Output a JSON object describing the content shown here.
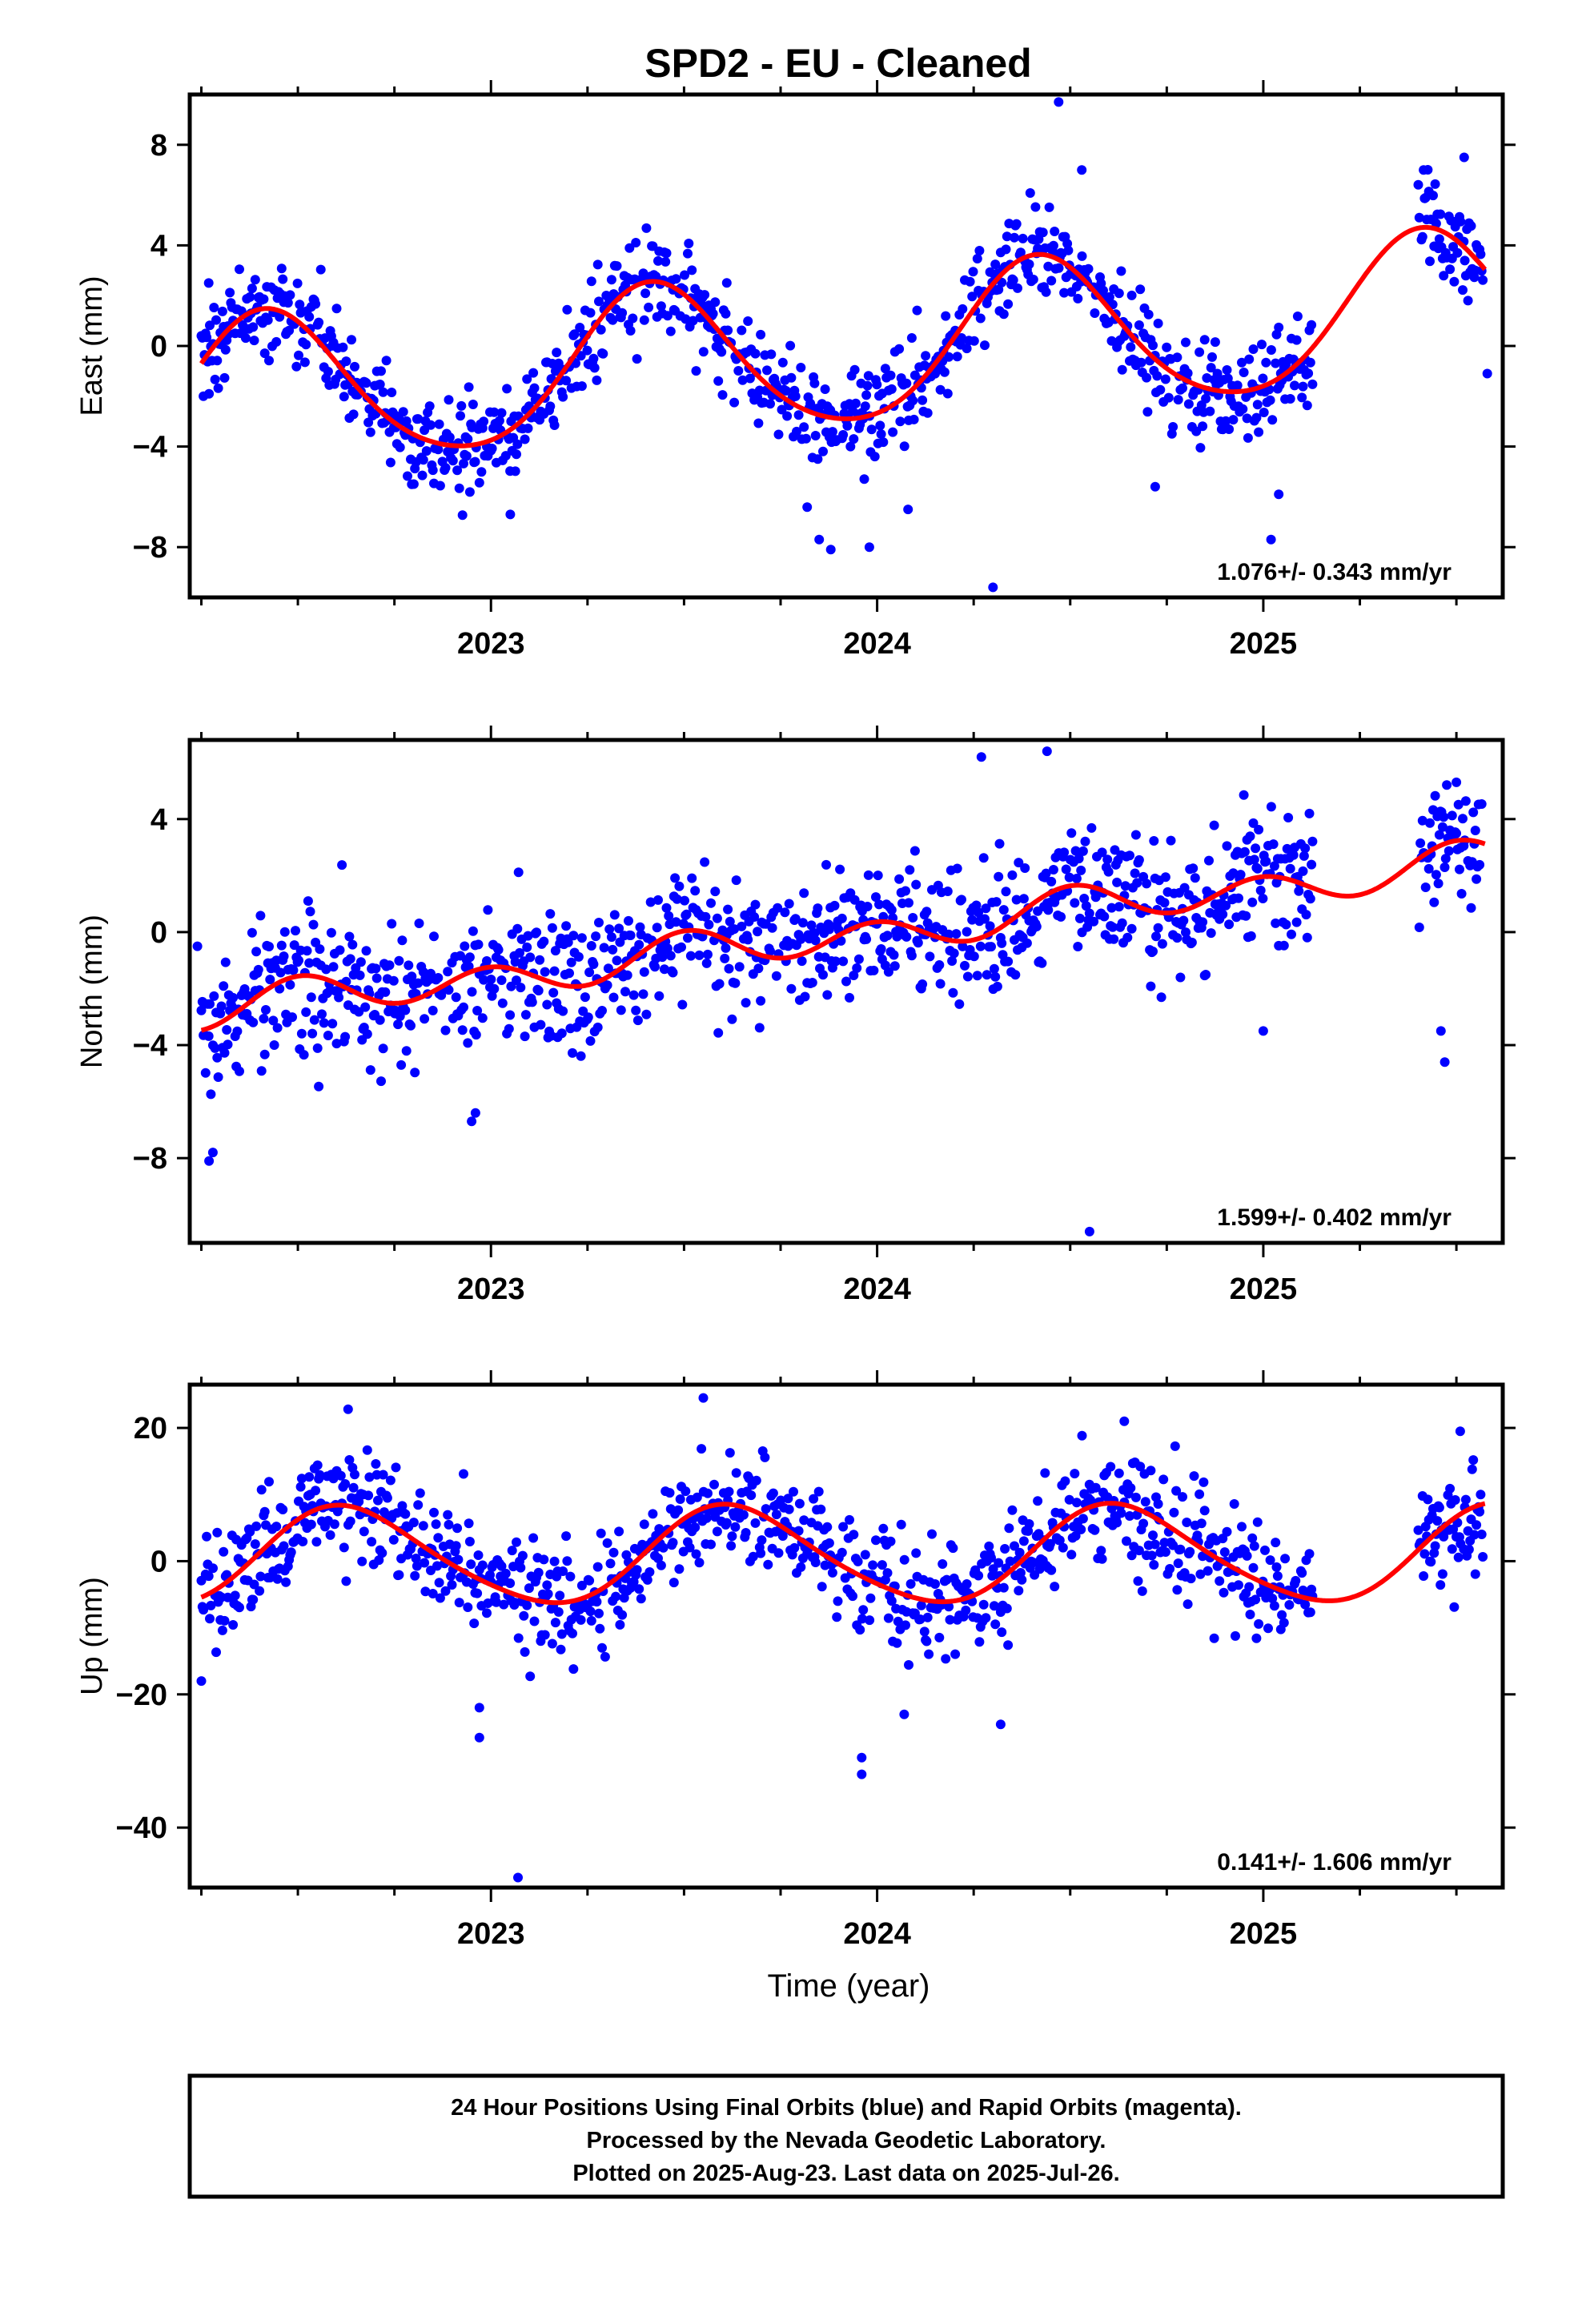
{
  "title": "SPD2  - EU - Cleaned",
  "footer": {
    "line1": "24 Hour Positions Using Final Orbits (blue) and Rapid Orbits (magenta).",
    "line2": "Processed by the Nevada Geodetic Laboratory.",
    "line3": "Plotted on 2025-Aug-23. Last data on 2025-Jul-26."
  },
  "colors": {
    "points": "#0000ff",
    "fit": "#ff0000",
    "axes": "#000000"
  },
  "chart_data": [
    {
      "type": "scatter",
      "component": "East",
      "ylabel": "East (mm)",
      "xlabel": "",
      "xlim": [
        2022.22,
        2025.62
      ],
      "ylim": [
        -10,
        10
      ],
      "yticks": [
        -8,
        -4,
        0,
        4,
        8
      ],
      "xticks": [
        2023,
        2024,
        2025
      ],
      "x_tick_labels": [
        "2023",
        "2024",
        "2025"
      ],
      "rate_label": "1.076+/- 0.343 mm/yr",
      "rate_mm_per_yr": 1.076,
      "rate_sigma": 0.343,
      "fit": {
        "ref_year": 2024.0,
        "offset": -0.15,
        "annual_amp": 3.0,
        "annual_peak": 0.42,
        "semiannual_amp": 0.35,
        "semiannual_peak": 0.4
      },
      "scatter_sd": 1.0,
      "data_gap": [
        2025.13,
        2025.4
      ],
      "outliers": [
        {
          "x": 2022.27,
          "y": -1.9
        },
        {
          "x": 2023.05,
          "y": -6.7
        },
        {
          "x": 2023.85,
          "y": -7.7
        },
        {
          "x": 2023.88,
          "y": -8.1
        },
        {
          "x": 2023.98,
          "y": -8.0
        },
        {
          "x": 2024.08,
          "y": -6.5
        },
        {
          "x": 2024.3,
          "y": -9.6
        },
        {
          "x": 2024.47,
          "y": 9.7
        },
        {
          "x": 2024.53,
          "y": 7.0
        },
        {
          "x": 2024.72,
          "y": -5.6
        },
        {
          "x": 2025.02,
          "y": -7.7
        },
        {
          "x": 2025.04,
          "y": -5.9
        },
        {
          "x": 2025.52,
          "y": 7.5
        },
        {
          "x": 2025.58,
          "y": -1.1
        }
      ]
    },
    {
      "type": "scatter",
      "component": "North",
      "ylabel": "North (mm)",
      "xlabel": "",
      "xlim": [
        2022.22,
        2025.62
      ],
      "ylim": [
        -11,
        6.8
      ],
      "yticks": [
        -8,
        -4,
        0,
        4
      ],
      "xticks": [
        2023,
        2024,
        2025
      ],
      "x_tick_labels": [
        "2023",
        "2024",
        "2025"
      ],
      "rate_label": "1.599+/- 0.402 mm/yr",
      "rate_mm_per_yr": 1.599,
      "rate_sigma": 0.402,
      "fit": {
        "ref_year": 2024.0,
        "offset": 0.0,
        "annual_amp": 0.25,
        "annual_peak": 0.55,
        "semiannual_amp": 0.6,
        "semiannual_peak": 0.5
      },
      "scatter_sd": 1.15,
      "data_gap": [
        2025.13,
        2025.4
      ],
      "outliers": [
        {
          "x": 2022.24,
          "y": -0.5
        },
        {
          "x": 2022.27,
          "y": -8.1
        },
        {
          "x": 2022.28,
          "y": -7.8
        },
        {
          "x": 2022.95,
          "y": -6.7
        },
        {
          "x": 2022.96,
          "y": -6.4
        },
        {
          "x": 2024.27,
          "y": 6.2
        },
        {
          "x": 2024.44,
          "y": 6.4
        },
        {
          "x": 2024.55,
          "y": -10.6
        },
        {
          "x": 2025.0,
          "y": -3.5
        },
        {
          "x": 2025.46,
          "y": -3.5
        },
        {
          "x": 2025.47,
          "y": -4.6
        },
        {
          "x": 2025.5,
          "y": 5.3
        }
      ]
    },
    {
      "type": "scatter",
      "component": "Up",
      "ylabel": "Up (mm)",
      "xlabel": "Time (year)",
      "xlim": [
        2022.22,
        2025.62
      ],
      "ylim": [
        -49,
        26.5
      ],
      "yticks": [
        -40,
        -20,
        0,
        20
      ],
      "xticks": [
        2023,
        2024,
        2025
      ],
      "x_tick_labels": [
        "2023",
        "2024",
        "2025"
      ],
      "rate_label": "0.141+/- 1.606 mm/yr",
      "rate_mm_per_yr": 0.141,
      "rate_sigma": 1.606,
      "fit": {
        "ref_year": 2024.0,
        "offset": 0.8,
        "annual_amp": 7.2,
        "annual_peak": 0.63,
        "semiannual_amp": 0.9,
        "semiannual_peak": 0.55
      },
      "scatter_sd": 4.2,
      "data_gap": [
        2025.13,
        2025.4
      ],
      "outliers": [
        {
          "x": 2022.25,
          "y": -18.0
        },
        {
          "x": 2022.97,
          "y": -22.0
        },
        {
          "x": 2022.97,
          "y": -26.5
        },
        {
          "x": 2023.07,
          "y": -47.5
        },
        {
          "x": 2023.55,
          "y": 24.5
        },
        {
          "x": 2023.96,
          "y": -29.5
        },
        {
          "x": 2023.96,
          "y": -32.0
        },
        {
          "x": 2024.07,
          "y": -23.0
        },
        {
          "x": 2024.32,
          "y": -24.5
        },
        {
          "x": 2024.64,
          "y": 21.0
        },
        {
          "x": 2022.63,
          "y": 22.8
        },
        {
          "x": 2025.51,
          "y": 19.5
        }
      ]
    }
  ]
}
